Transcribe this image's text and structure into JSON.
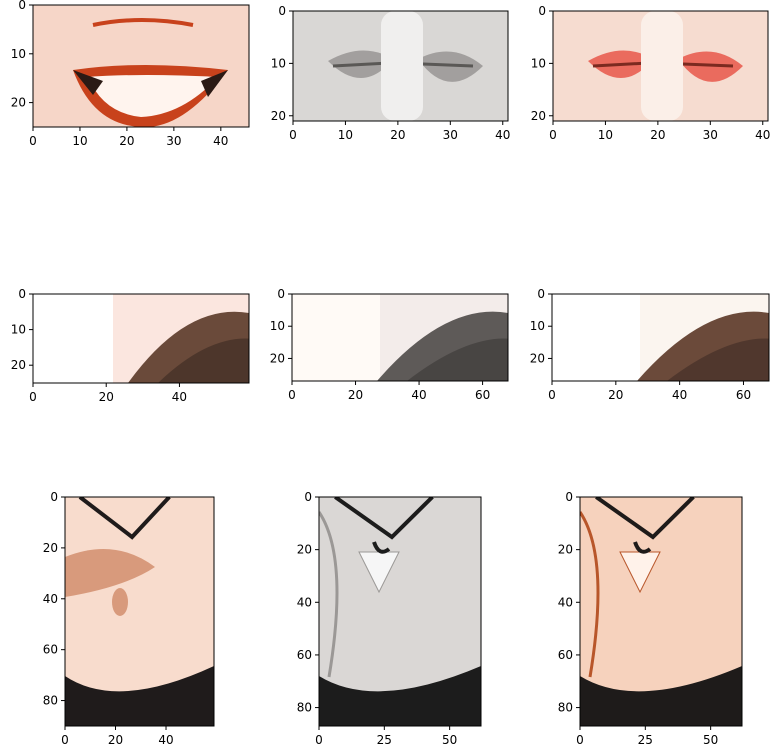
{
  "figure": {
    "panels": [
      {
        "name": "row1-color-lips",
        "image_desc": "smiling lips",
        "xticks": [
          "0",
          "10",
          "20",
          "30",
          "40"
        ],
        "yticks": [
          "0",
          "10",
          "20"
        ],
        "x_range": [
          0,
          46
        ],
        "y_range": [
          0,
          25
        ],
        "palette": {
          "bg": "#f6d6c8",
          "accent": "#c8421c",
          "dark": "#2b1a15",
          "light": "#fff4ee"
        }
      },
      {
        "name": "row1-gray-finger-lips",
        "image_desc": "finger over lips (grayscale)",
        "xticks": [
          "0",
          "10",
          "20",
          "30",
          "40"
        ],
        "yticks": [
          "0",
          "10",
          "20"
        ],
        "x_range": [
          0,
          41
        ],
        "y_range": [
          0,
          21
        ],
        "palette": {
          "bg": "#d9d7d5",
          "accent": "#8a8886",
          "dark": "#5a5856",
          "light": "#f0efee"
        }
      },
      {
        "name": "row1-colorized-finger-lips",
        "image_desc": "finger over lips (colorized)",
        "xticks": [
          "0",
          "10",
          "20",
          "30",
          "40"
        ],
        "yticks": [
          "0",
          "10",
          "20"
        ],
        "x_range": [
          0,
          41
        ],
        "y_range": [
          0,
          21
        ],
        "palette": {
          "bg": "#f6dcd0",
          "accent": "#e63b2e",
          "dark": "#7b2a20",
          "light": "#fbefe8"
        }
      },
      {
        "name": "row2-color-hair",
        "image_desc": "hair in corner",
        "xticks": [
          "0",
          "20",
          "40"
        ],
        "yticks": [
          "0",
          "10",
          "20"
        ],
        "x_range": [
          0,
          59
        ],
        "y_range": [
          0,
          25
        ],
        "palette": {
          "bg": "#fbe6df",
          "accent": "#6a4a3a",
          "dark": "#3a2a22",
          "light": "#ffffff"
        }
      },
      {
        "name": "row2-gray-hair",
        "image_desc": "hair in corner (grayscale)",
        "xticks": [
          "0",
          "20",
          "40",
          "60"
        ],
        "yticks": [
          "0",
          "10",
          "20"
        ],
        "x_range": [
          0,
          68
        ],
        "y_range": [
          0,
          27
        ],
        "palette": {
          "bg": "#f3ecea",
          "accent": "#5e5a58",
          "dark": "#3a3735",
          "light": "#fffaf6"
        }
      },
      {
        "name": "row2-colorized-hair",
        "image_desc": "hair in corner (colorized)",
        "xticks": [
          "0",
          "20",
          "40",
          "60"
        ],
        "yticks": [
          "0",
          "10",
          "20"
        ],
        "x_range": [
          0,
          68
        ],
        "y_range": [
          0,
          27
        ],
        "palette": {
          "bg": "#fbf5ef",
          "accent": "#6b4a3a",
          "dark": "#3e2c24",
          "light": "#ffffff"
        }
      },
      {
        "name": "row3-color-neck",
        "image_desc": "hand on neck and chest",
        "xticks": [
          "0",
          "20",
          "40"
        ],
        "yticks": [
          "0",
          "20",
          "40",
          "60",
          "80"
        ],
        "x_range": [
          0,
          59
        ],
        "y_range": [
          0,
          90
        ],
        "palette": {
          "bg": "#f8dccd",
          "accent": "#d89a7c",
          "dark": "#1f1b1b",
          "light": "#fff1e8"
        }
      },
      {
        "name": "row3-gray-neck",
        "image_desc": "neck with necklace (grayscale)",
        "xticks": [
          "0",
          "25",
          "50"
        ],
        "yticks": [
          "0",
          "20",
          "40",
          "60",
          "80"
        ],
        "x_range": [
          0,
          62
        ],
        "y_range": [
          0,
          87
        ],
        "palette": {
          "bg": "#dad7d5",
          "accent": "#9b9896",
          "dark": "#1c1c1c",
          "light": "#f6f6f6"
        }
      },
      {
        "name": "row3-colorized-neck",
        "image_desc": "neck with necklace (colorized)",
        "xticks": [
          "0",
          "25",
          "50"
        ],
        "yticks": [
          "0",
          "20",
          "40",
          "60",
          "80"
        ],
        "x_range": [
          0,
          62
        ],
        "y_range": [
          0,
          87
        ],
        "palette": {
          "bg": "#f6d2bd",
          "accent": "#b8562a",
          "dark": "#1e1b1a",
          "light": "#fff2ea"
        }
      }
    ]
  }
}
